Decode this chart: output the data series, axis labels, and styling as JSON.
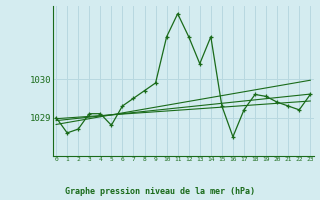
{
  "title": "Graphe pression niveau de la mer (hPa)",
  "background_color": "#d4ecf0",
  "grid_color": "#b8d8e0",
  "line_color": "#1a6b1a",
  "yticks": [
    1029,
    1030
  ],
  "xticks": [
    0,
    1,
    2,
    3,
    4,
    5,
    6,
    7,
    8,
    9,
    10,
    11,
    12,
    13,
    14,
    15,
    16,
    17,
    18,
    19,
    20,
    21,
    22,
    23
  ],
  "ylim": [
    1028.0,
    1031.9
  ],
  "xlim": [
    -0.3,
    23.3
  ],
  "series": {
    "main": [
      1029.0,
      1028.6,
      1028.7,
      1029.1,
      1029.1,
      1028.8,
      1029.3,
      1029.5,
      1029.7,
      1029.9,
      1031.1,
      1031.7,
      1031.1,
      1030.4,
      1031.1,
      1029.3,
      1028.5,
      1029.2,
      1029.6,
      1029.55,
      1029.4,
      1029.3,
      1029.2,
      1029.6
    ],
    "trend1": [
      1028.92,
      1028.95,
      1028.98,
      1029.01,
      1029.04,
      1029.07,
      1029.1,
      1029.13,
      1029.16,
      1029.19,
      1029.22,
      1029.25,
      1029.28,
      1029.31,
      1029.34,
      1029.37,
      1029.4,
      1029.43,
      1029.46,
      1029.49,
      1029.52,
      1029.55,
      1029.58,
      1029.61
    ],
    "trend2": [
      1028.82,
      1028.87,
      1028.92,
      1028.97,
      1029.02,
      1029.07,
      1029.12,
      1029.17,
      1029.22,
      1029.27,
      1029.32,
      1029.37,
      1029.42,
      1029.47,
      1029.52,
      1029.57,
      1029.62,
      1029.67,
      1029.72,
      1029.77,
      1029.82,
      1029.87,
      1029.92,
      1029.97
    ],
    "trend3": [
      1028.97,
      1028.99,
      1029.01,
      1029.03,
      1029.05,
      1029.07,
      1029.09,
      1029.11,
      1029.13,
      1029.15,
      1029.17,
      1029.19,
      1029.21,
      1029.23,
      1029.25,
      1029.27,
      1029.29,
      1029.31,
      1029.33,
      1029.35,
      1029.37,
      1029.39,
      1029.41,
      1029.43
    ]
  }
}
